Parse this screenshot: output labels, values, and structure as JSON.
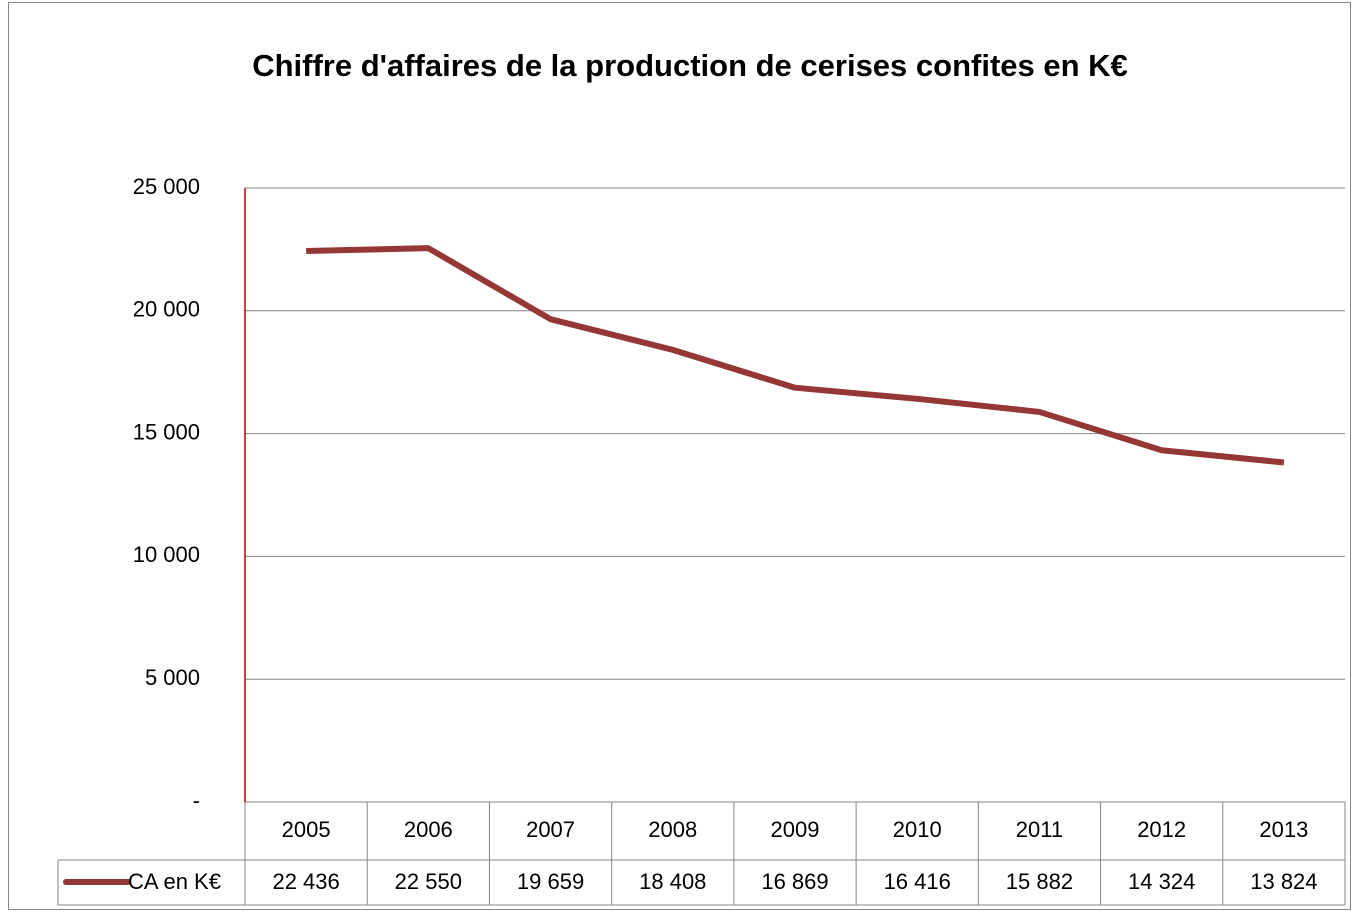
{
  "chart_data": {
    "type": "line",
    "title": "Chiffre d'affaires de la production de cerises confites en K€",
    "categories": [
      "2005",
      "2006",
      "2007",
      "2008",
      "2009",
      "2010",
      "2011",
      "2012",
      "2013"
    ],
    "series": [
      {
        "name": "CA en K€",
        "color": "#953735",
        "values": [
          22436,
          22550,
          19659,
          18408,
          16869,
          16416,
          15882,
          14324,
          13824
        ],
        "value_labels": [
          "22 436",
          "22 550",
          "19 659",
          "18 408",
          "16 869",
          "16 416",
          "15 882",
          "14 324",
          "13 824"
        ]
      }
    ],
    "ylim": [
      0,
      25000
    ],
    "yticks": [
      {
        "value": 0,
        "label": "-"
      },
      {
        "value": 5000,
        "label": "5 000"
      },
      {
        "value": 10000,
        "label": "10 000"
      },
      {
        "value": 15000,
        "label": "15 000"
      },
      {
        "value": 20000,
        "label": "20 000"
      },
      {
        "value": 25000,
        "label": "25 000"
      }
    ],
    "grid": true,
    "axis_color": "#c00000"
  }
}
